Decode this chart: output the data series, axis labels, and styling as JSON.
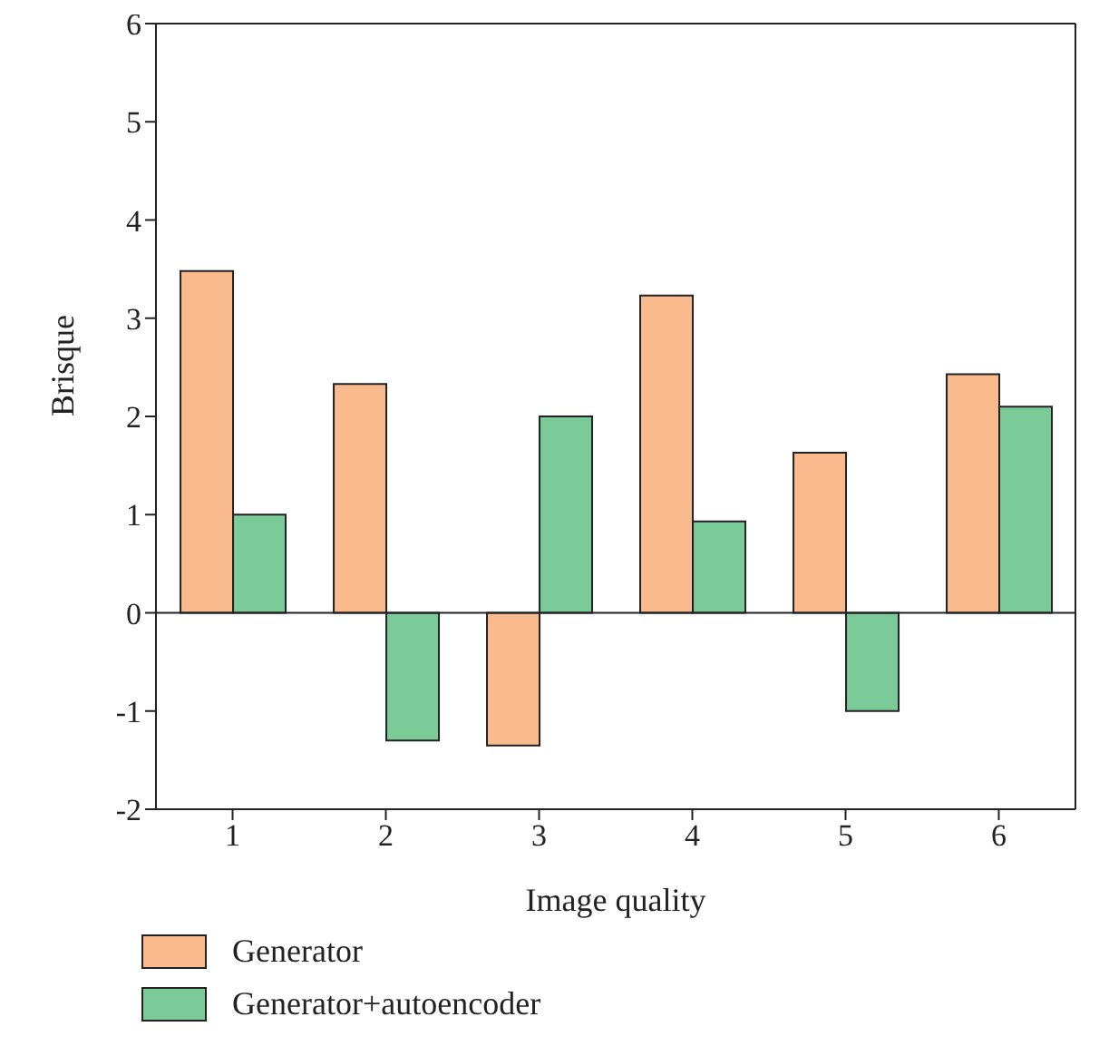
{
  "chart_data": {
    "type": "bar",
    "xlabel": "Image quality",
    "ylabel": "Brisque",
    "categories": [
      "1",
      "2",
      "3",
      "4",
      "5",
      "6"
    ],
    "series": [
      {
        "name": "Generator",
        "color": "#f9bb8d",
        "values": [
          3.48,
          2.33,
          -1.35,
          3.23,
          1.63,
          2.43
        ]
      },
      {
        "name": "Generator+autoencoder",
        "color": "#7acb97",
        "values": [
          1.0,
          -1.3,
          2.0,
          0.93,
          -1.0,
          2.1
        ]
      }
    ],
    "ylim": [
      -2,
      6
    ],
    "yticks": [
      -2,
      -1,
      0,
      1,
      2,
      3,
      4,
      5,
      6
    ],
    "legend": "bottom"
  }
}
